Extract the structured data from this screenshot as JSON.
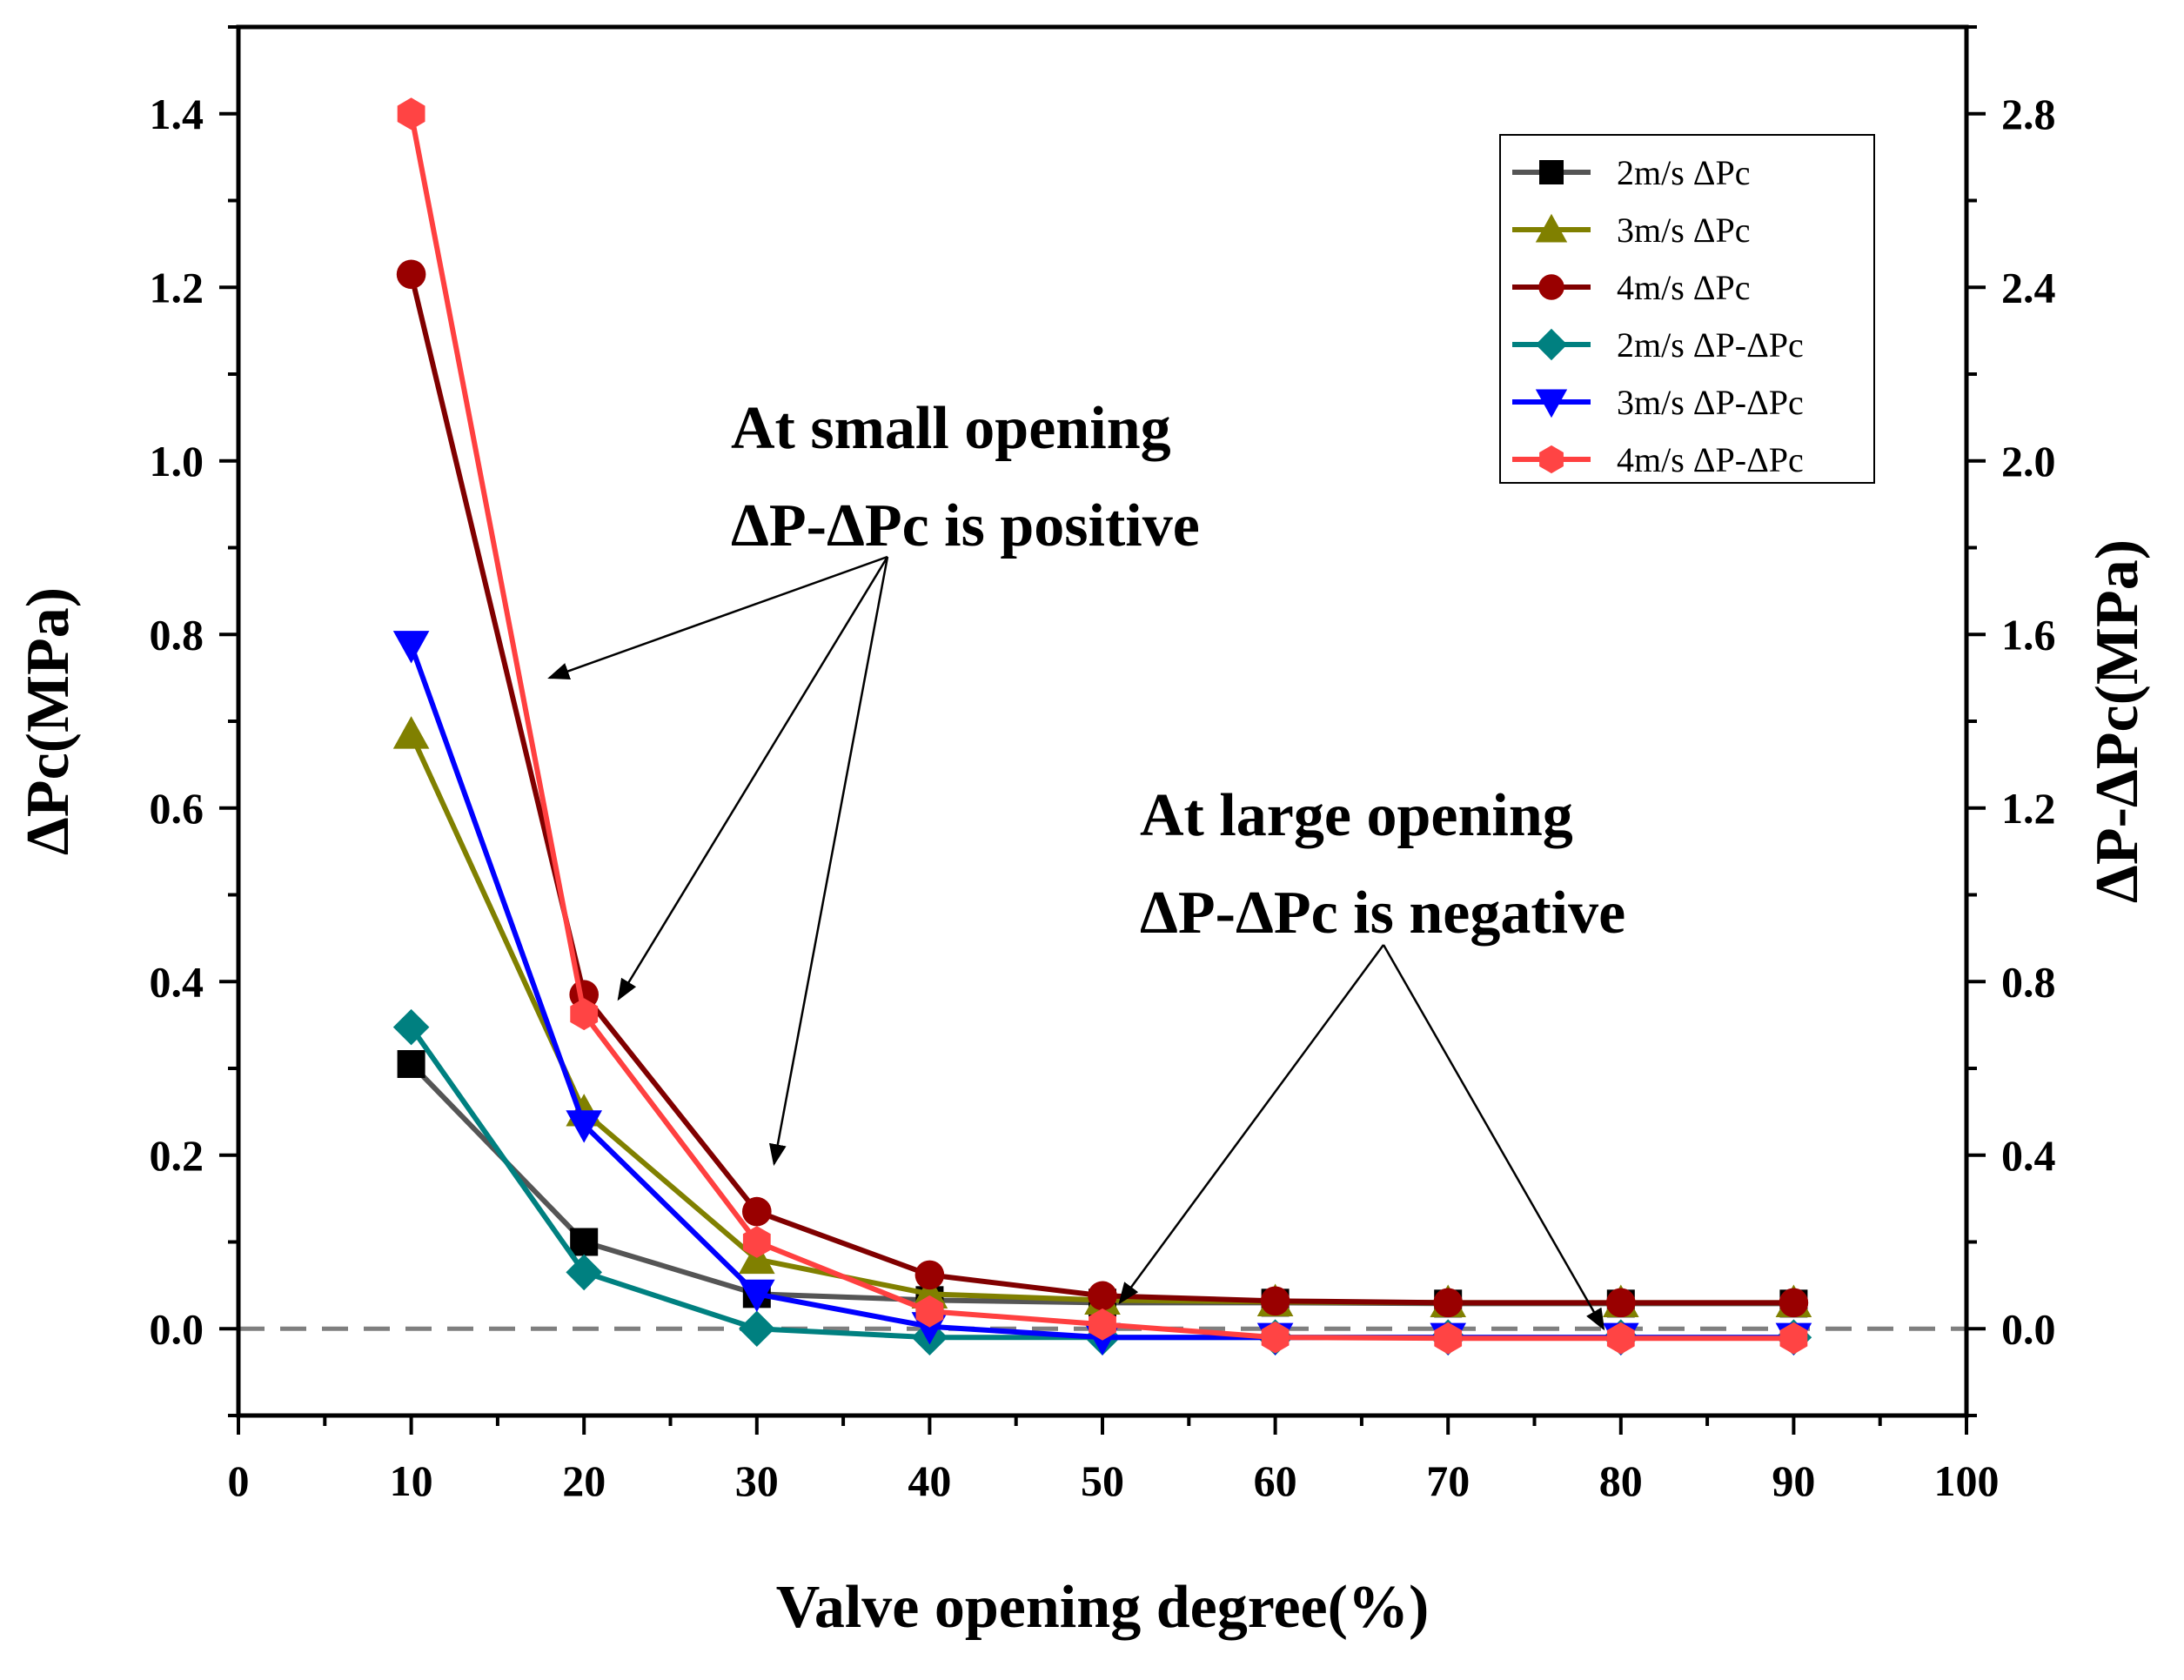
{
  "chart_data": {
    "type": "line",
    "title": "",
    "xlabel": "Valve opening degree(%)",
    "ylabel_left": "ΔPc(MPa)",
    "ylabel_right": "ΔP-ΔPc(MPa)",
    "xlim": [
      0,
      100
    ],
    "ylim_left": [
      -0.1,
      1.5
    ],
    "ylim_right": [
      -0.2,
      3.0
    ],
    "x_ticks": [
      0,
      10,
      20,
      30,
      40,
      50,
      60,
      70,
      80,
      90,
      100
    ],
    "y_ticks_left": [
      0.0,
      0.2,
      0.4,
      0.6,
      0.8,
      1.0,
      1.2,
      1.4
    ],
    "y_ticks_right": [
      0.0,
      0.4,
      0.8,
      1.2,
      1.6,
      2.0,
      2.4,
      2.8
    ],
    "x_tick_labels": [
      "0",
      "10",
      "20",
      "30",
      "40",
      "50",
      "60",
      "70",
      "80",
      "90",
      "100"
    ],
    "y_tick_labels_left": [
      "0.0",
      "0.2",
      "0.4",
      "0.6",
      "0.8",
      "1.0",
      "1.2",
      "1.4"
    ],
    "y_tick_labels_right": [
      "0.0",
      "0.4",
      "0.8",
      "1.2",
      "1.6",
      "2.0",
      "2.4",
      "2.8"
    ],
    "grid": false,
    "legend_position": "top-right",
    "reference_line": {
      "axis": "left",
      "y": 0,
      "style": "dashed",
      "color": "#7f7f7f"
    },
    "x": [
      10,
      20,
      30,
      40,
      50,
      60,
      70,
      80,
      90
    ],
    "series": [
      {
        "name": "2m/s ΔPc",
        "axis": "left",
        "color": "#555555",
        "marker_color": "#000000",
        "marker": "square",
        "values": [
          0.305,
          0.1,
          0.04,
          0.033,
          0.03,
          0.03,
          0.029,
          0.029,
          0.029
        ]
      },
      {
        "name": "3m/s ΔPc",
        "axis": "left",
        "color": "#808000",
        "marker_color": "#808000",
        "marker": "triangle-up",
        "values": [
          0.685,
          0.25,
          0.08,
          0.04,
          0.033,
          0.031,
          0.03,
          0.03,
          0.03
        ]
      },
      {
        "name": "4m/s ΔPc",
        "axis": "left",
        "color": "#800000",
        "marker_color": "#990000",
        "marker": "circle",
        "values": [
          1.215,
          0.385,
          0.135,
          0.062,
          0.038,
          0.032,
          0.03,
          0.03,
          0.03
        ]
      },
      {
        "name": "2m/s ΔP-ΔPc",
        "axis": "right",
        "color": "#008080",
        "marker_color": "#008080",
        "marker": "diamond",
        "values": [
          0.695,
          0.13,
          0.0,
          -0.02,
          -0.02,
          -0.02,
          -0.02,
          -0.02,
          -0.02
        ]
      },
      {
        "name": "3m/s ΔP-ΔPc",
        "axis": "right",
        "color": "#0000ff",
        "marker_color": "#0000ff",
        "marker": "triangle-down",
        "values": [
          1.575,
          0.47,
          0.08,
          0.005,
          -0.02,
          -0.02,
          -0.02,
          -0.02,
          -0.02
        ]
      },
      {
        "name": "4m/s ΔP-ΔPc",
        "axis": "right",
        "color": "#ff4040",
        "marker_color": "#ff4444",
        "marker": "hexagon",
        "values": [
          2.8,
          0.725,
          0.2,
          0.04,
          0.01,
          -0.02,
          -0.022,
          -0.022,
          -0.022
        ]
      }
    ],
    "annotations": [
      {
        "lines": [
          "At small opening",
          "ΔP-ΔPc is positive"
        ],
        "arrow_targets_data": [
          [
            18,
            0.75
          ],
          [
            22,
            0.38
          ],
          [
            31,
            0.19
          ]
        ]
      },
      {
        "lines": [
          "At large opening",
          "ΔP-ΔPc is negative"
        ],
        "arrow_targets_data": [
          [
            51,
            0.03
          ],
          [
            79,
            0.0
          ]
        ]
      }
    ]
  }
}
